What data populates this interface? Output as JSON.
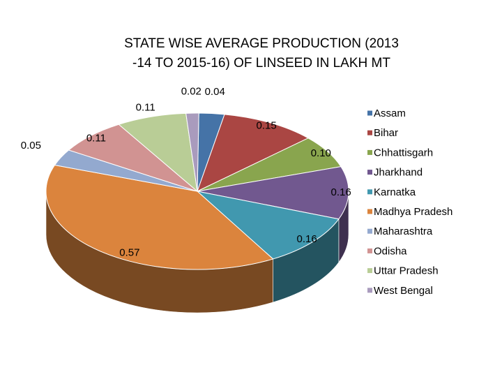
{
  "chart_data": {
    "type": "pie",
    "title_lines": [
      "STATE WISE AVERAGE PRODUCTION (2013",
      "-14 TO 2015-16) OF LINSEED IN LAKH MT"
    ],
    "categories": [
      "Assam",
      "Bihar",
      "Chhattisgarh",
      "Jharkhand",
      "Karnatka",
      "Madhya Pradesh",
      "Maharashtra",
      "Odisha",
      "Uttar Pradesh",
      "West Bengal"
    ],
    "values": [
      0.04,
      0.15,
      0.1,
      0.16,
      0.16,
      0.57,
      0.05,
      0.11,
      0.11,
      0.02
    ],
    "labels": [
      "0.04",
      "0.15",
      "0.10",
      "0.16",
      "0.16",
      "0.57",
      "0.05",
      "0.11",
      "0.11",
      "0.02"
    ],
    "colors": [
      "#4573A7",
      "#AA4643",
      "#89A54E",
      "#71588F",
      "#4198AF",
      "#DB843D",
      "#93A9CF",
      "#D19392",
      "#B9CD96",
      "#A99BBD"
    ],
    "legend_position": "right",
    "style": "3d"
  }
}
